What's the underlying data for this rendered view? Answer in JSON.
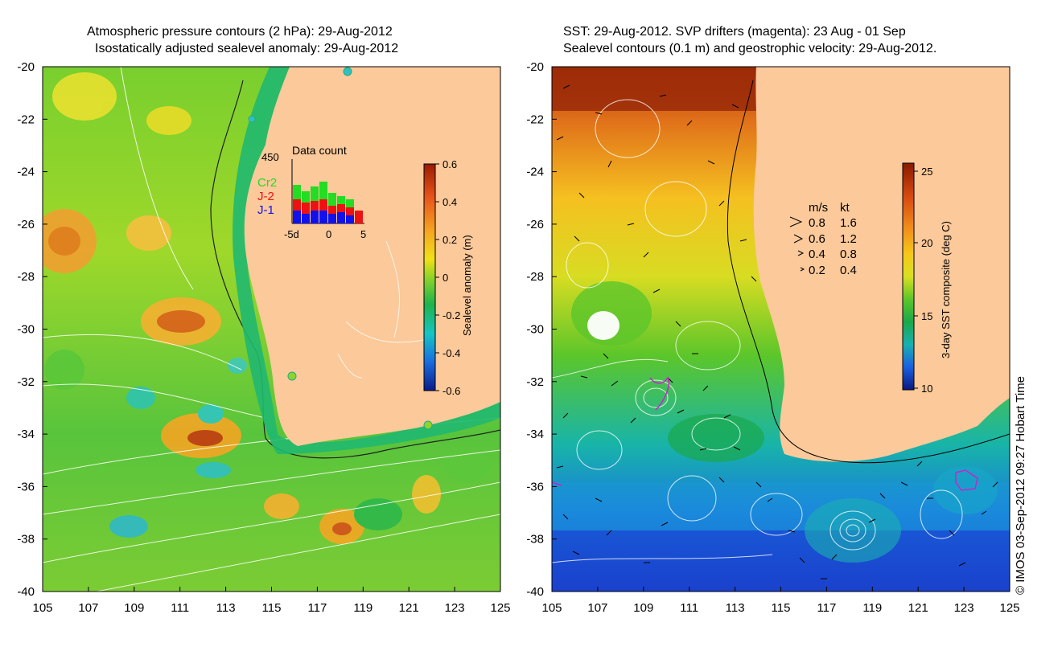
{
  "left_panel": {
    "title_line1": "Atmospheric pressure contours (2 hPa): 29-Aug-2012",
    "title_line2": "Isostatically adjusted sealevel anomaly: 29-Aug-2012",
    "x_ticks": [
      "105",
      "107",
      "109",
      "111",
      "113",
      "115",
      "117",
      "119",
      "121",
      "123",
      "125"
    ],
    "y_ticks": [
      "-20",
      "-22",
      "-24",
      "-26",
      "-28",
      "-30",
      "-32",
      "-34",
      "-36",
      "-38",
      "-40"
    ],
    "colorbar": {
      "label": "Sealevel anomaly (m)",
      "ticks": [
        "0.6",
        "0.4",
        "0.2",
        "0",
        "-0.2",
        "-0.4",
        "-0.6"
      ],
      "colors": [
        "#9a1a00",
        "#e8561a",
        "#f5a623",
        "#f2e018",
        "#8fd42a",
        "#1fb34a",
        "#16c4c4",
        "#1a6fe0",
        "#0a1a8a"
      ]
    },
    "histogram": {
      "title": "Data count",
      "ymax_label": "450",
      "x_labels": [
        "-5d",
        "0",
        "5"
      ],
      "series": [
        {
          "name": "Cr2",
          "color": "#22dd22"
        },
        {
          "name": "J-2",
          "color": "#ee1111"
        },
        {
          "name": "J-1",
          "color": "#1111ee"
        }
      ]
    }
  },
  "right_panel": {
    "title_line1": "SST: 29-Aug-2012. SVP drifters (magenta): 23 Aug - 01 Sep",
    "title_line2": "Sealevel contours (0.1 m) and geostrophic velocity: 29-Aug-2012.",
    "x_ticks": [
      "105",
      "107",
      "109",
      "111",
      "113",
      "115",
      "117",
      "119",
      "121",
      "123",
      "125"
    ],
    "y_ticks": [
      "-20",
      "-22",
      "-24",
      "-26",
      "-28",
      "-30",
      "-32",
      "-34",
      "-36",
      "-38",
      "-40"
    ],
    "colorbar": {
      "label": "3-day SST composite (deg C)",
      "ticks": [
        "25",
        "20",
        "15",
        "10"
      ],
      "colors": [
        "#8a1a00",
        "#d84a10",
        "#f08a1a",
        "#f5c818",
        "#d8e020",
        "#5cc62a",
        "#1aa84a",
        "#18b0b0",
        "#1a60e0",
        "#0a1880"
      ]
    },
    "velocity_legend": {
      "header_ms": "m/s",
      "header_kt": "kt",
      "rows": [
        {
          "ms": "0.8",
          "kt": "1.6"
        },
        {
          "ms": "0.6",
          "kt": "1.2"
        },
        {
          "ms": "0.4",
          "kt": "0.8"
        },
        {
          "ms": "0.2",
          "kt": "0.4"
        }
      ]
    }
  },
  "colors": {
    "land": "#fbc99a",
    "ocean_mid": "#4cc43a"
  },
  "credit": "© IMOS 03-Sep-2012 09:27 Hobart Time"
}
